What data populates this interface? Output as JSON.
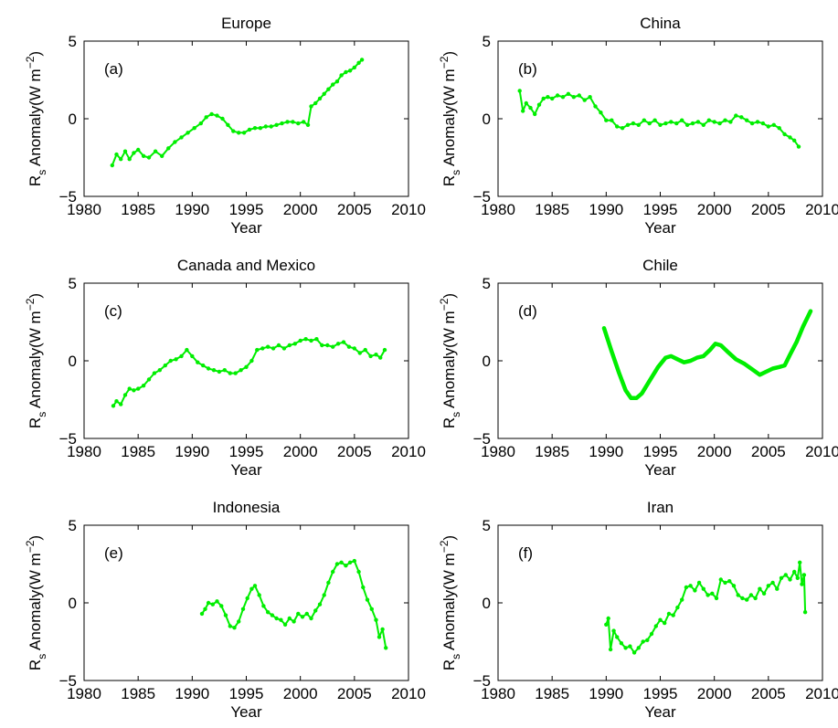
{
  "figure": {
    "line_color": "#00ee00",
    "axis_color": "#000000",
    "background": "#ffffff"
  },
  "chart_data": [
    {
      "type": "line",
      "title": "Europe",
      "panel_label": "(a)",
      "xlabel": "Year",
      "ylabel_main": "R",
      "ylabel_sub": "s",
      "ylabel_rest": " Anomaly(W m",
      "ylabel_sup": "−2",
      "ylabel_close": ")",
      "xlim": [
        1980,
        2010
      ],
      "ylim": [
        -5,
        5
      ],
      "xticks": [
        1980,
        1985,
        1990,
        1995,
        2000,
        2005,
        2010
      ],
      "yticks": [
        -5,
        0,
        5
      ],
      "xtick_labels": [
        "1980",
        "1985",
        "1990",
        "1995",
        "2000",
        "2005",
        "2010"
      ],
      "ytick_labels": [
        "−5",
        "0",
        "5"
      ],
      "markers": true,
      "series": [
        {
          "color": "#00ee00",
          "x": [
            1982.6,
            1983.0,
            1983.4,
            1983.8,
            1984.2,
            1984.6,
            1985.0,
            1985.5,
            1986.0,
            1986.6,
            1987.2,
            1987.8,
            1988.4,
            1989.0,
            1989.6,
            1990.2,
            1990.8,
            1991.3,
            1991.8,
            1992.3,
            1992.8,
            1993.3,
            1993.8,
            1994.3,
            1994.8,
            1995.3,
            1995.8,
            1996.3,
            1996.8,
            1997.3,
            1997.8,
            1998.3,
            1998.8,
            1999.3,
            1999.8,
            2000.3,
            2000.7,
            2001.0,
            2001.4,
            2001.8,
            2002.2,
            2002.6,
            2003.0,
            2003.4,
            2003.8,
            2004.2,
            2004.6,
            2005.0,
            2005.4,
            2005.7
          ],
          "y": [
            -3.0,
            -2.3,
            -2.6,
            -2.1,
            -2.6,
            -2.2,
            -2.0,
            -2.4,
            -2.5,
            -2.1,
            -2.4,
            -1.9,
            -1.5,
            -1.2,
            -0.9,
            -0.6,
            -0.3,
            0.1,
            0.3,
            0.2,
            0.0,
            -0.4,
            -0.8,
            -0.9,
            -0.9,
            -0.7,
            -0.6,
            -0.6,
            -0.5,
            -0.5,
            -0.4,
            -0.3,
            -0.2,
            -0.2,
            -0.3,
            -0.2,
            -0.4,
            0.8,
            1.0,
            1.3,
            1.6,
            1.9,
            2.2,
            2.4,
            2.8,
            3.0,
            3.1,
            3.3,
            3.6,
            3.8
          ]
        }
      ]
    },
    {
      "type": "line",
      "title": "China",
      "panel_label": "(b)",
      "xlabel": "Year",
      "ylabel_main": "R",
      "ylabel_sub": "s",
      "ylabel_rest": " Anomaly(W m",
      "ylabel_sup": "−2",
      "ylabel_close": ")",
      "xlim": [
        1980,
        2010
      ],
      "ylim": [
        -5,
        5
      ],
      "xticks": [
        1980,
        1985,
        1990,
        1995,
        2000,
        2005,
        2010
      ],
      "yticks": [
        -5,
        0,
        5
      ],
      "xtick_labels": [
        "1980",
        "1985",
        "1990",
        "1995",
        "2000",
        "2005",
        "2010"
      ],
      "ytick_labels": [
        "−5",
        "0",
        "5"
      ],
      "markers": true,
      "series": [
        {
          "color": "#00ee00",
          "x": [
            1982.0,
            1982.3,
            1982.6,
            1983.0,
            1983.4,
            1983.8,
            1984.2,
            1984.6,
            1985.0,
            1985.5,
            1986.0,
            1986.5,
            1987.0,
            1987.5,
            1988.0,
            1988.5,
            1989.0,
            1989.5,
            1990.0,
            1990.5,
            1991.0,
            1991.5,
            1992.0,
            1992.5,
            1993.0,
            1993.5,
            1994.0,
            1994.5,
            1995.0,
            1995.5,
            1996.0,
            1996.5,
            1997.0,
            1997.5,
            1998.0,
            1998.5,
            1999.0,
            1999.5,
            2000.0,
            2000.5,
            2001.0,
            2001.5,
            2002.0,
            2002.5,
            2003.0,
            2003.5,
            2004.0,
            2004.5,
            2005.0,
            2005.5,
            2006.0,
            2006.5,
            2007.0,
            2007.4,
            2007.8
          ],
          "y": [
            1.8,
            0.5,
            1.0,
            0.7,
            0.3,
            0.9,
            1.3,
            1.4,
            1.3,
            1.5,
            1.4,
            1.6,
            1.4,
            1.5,
            1.2,
            1.4,
            0.8,
            0.4,
            -0.1,
            -0.1,
            -0.5,
            -0.6,
            -0.4,
            -0.3,
            -0.4,
            -0.1,
            -0.3,
            -0.1,
            -0.4,
            -0.3,
            -0.2,
            -0.3,
            -0.1,
            -0.4,
            -0.3,
            -0.2,
            -0.4,
            -0.1,
            -0.2,
            -0.3,
            -0.1,
            -0.2,
            0.2,
            0.1,
            -0.1,
            -0.3,
            -0.2,
            -0.3,
            -0.5,
            -0.4,
            -0.6,
            -1.0,
            -1.2,
            -1.4,
            -1.8
          ]
        }
      ]
    },
    {
      "type": "line",
      "title": "Canada and Mexico",
      "panel_label": "(c)",
      "xlabel": "Year",
      "ylabel_main": "R",
      "ylabel_sub": "s",
      "ylabel_rest": " Anomaly(W m",
      "ylabel_sup": "−2",
      "ylabel_close": ")",
      "xlim": [
        1980,
        2010
      ],
      "ylim": [
        -5,
        5
      ],
      "xticks": [
        1980,
        1985,
        1990,
        1995,
        2000,
        2005,
        2010
      ],
      "yticks": [
        -5,
        0,
        5
      ],
      "xtick_labels": [
        "1980",
        "1985",
        "1990",
        "1995",
        "2000",
        "2005",
        "2010"
      ],
      "ytick_labels": [
        "−5",
        "0",
        "5"
      ],
      "markers": true,
      "series": [
        {
          "color": "#00ee00",
          "x": [
            1982.7,
            1983.0,
            1983.4,
            1983.8,
            1984.2,
            1984.6,
            1985.0,
            1985.5,
            1986.0,
            1986.5,
            1987.0,
            1987.5,
            1988.0,
            1988.5,
            1989.0,
            1989.5,
            1990.0,
            1990.5,
            1991.0,
            1991.5,
            1992.0,
            1992.5,
            1993.0,
            1993.5,
            1994.0,
            1994.5,
            1995.0,
            1995.5,
            1996.0,
            1996.5,
            1997.0,
            1997.5,
            1998.0,
            1998.5,
            1999.0,
            1999.5,
            2000.0,
            2000.5,
            2001.0,
            2001.5,
            2002.0,
            2002.5,
            2003.0,
            2003.5,
            2004.0,
            2004.5,
            2005.0,
            2005.5,
            2006.0,
            2006.5,
            2007.0,
            2007.4,
            2007.8
          ],
          "y": [
            -2.9,
            -2.6,
            -2.8,
            -2.2,
            -1.8,
            -1.9,
            -1.8,
            -1.6,
            -1.2,
            -0.8,
            -0.6,
            -0.3,
            0.0,
            0.1,
            0.3,
            0.7,
            0.3,
            -0.1,
            -0.3,
            -0.5,
            -0.6,
            -0.7,
            -0.6,
            -0.8,
            -0.8,
            -0.6,
            -0.4,
            0.0,
            0.7,
            0.8,
            0.9,
            0.8,
            1.0,
            0.8,
            1.0,
            1.1,
            1.3,
            1.4,
            1.3,
            1.4,
            1.0,
            1.0,
            0.9,
            1.1,
            1.2,
            0.9,
            0.8,
            0.5,
            0.7,
            0.3,
            0.4,
            0.2,
            0.7
          ]
        }
      ]
    },
    {
      "type": "line",
      "title": "Chile",
      "panel_label": "(d)",
      "xlabel": "Year",
      "ylabel_main": "R",
      "ylabel_sub": "s",
      "ylabel_rest": " Anomaly(W m",
      "ylabel_sup": "−2",
      "ylabel_close": ")",
      "xlim": [
        1980,
        2010
      ],
      "ylim": [
        -5,
        5
      ],
      "xticks": [
        1980,
        1985,
        1990,
        1995,
        2000,
        2005,
        2010
      ],
      "yticks": [
        -5,
        0,
        5
      ],
      "xtick_labels": [
        "1980",
        "1985",
        "1990",
        "1995",
        "2000",
        "2005",
        "2010"
      ],
      "ytick_labels": [
        "−5",
        "0",
        "5"
      ],
      "markers": false,
      "series": [
        {
          "color": "#00ee00",
          "x": [
            1989.8,
            1990.5,
            1991.2,
            1991.8,
            1992.3,
            1992.8,
            1993.3,
            1994.0,
            1994.8,
            1995.5,
            1996.0,
            1996.6,
            1997.2,
            1997.8,
            1998.4,
            1999.0,
            1999.6,
            2000.1,
            2000.6,
            2001.2,
            2002.0,
            2002.8,
            2003.6,
            2004.2,
            2004.8,
            2005.4,
            2006.0,
            2006.5,
            2007.0,
            2007.6,
            2008.2,
            2008.9
          ],
          "y": [
            2.1,
            0.6,
            -0.8,
            -1.9,
            -2.4,
            -2.4,
            -2.1,
            -1.3,
            -0.4,
            0.2,
            0.3,
            0.1,
            -0.1,
            0.0,
            0.2,
            0.3,
            0.7,
            1.1,
            1.0,
            0.6,
            0.1,
            -0.2,
            -0.6,
            -0.9,
            -0.7,
            -0.5,
            -0.4,
            -0.3,
            0.4,
            1.2,
            2.2,
            3.2
          ]
        }
      ]
    },
    {
      "type": "line",
      "title": "Indonesia",
      "panel_label": "(e)",
      "xlabel": "Year",
      "ylabel_main": "R",
      "ylabel_sub": "s",
      "ylabel_rest": " Anomaly(W m",
      "ylabel_sup": "−2",
      "ylabel_close": ")",
      "xlim": [
        1980,
        2010
      ],
      "ylim": [
        -5,
        5
      ],
      "xticks": [
        1980,
        1985,
        1990,
        1995,
        2000,
        2005,
        2010
      ],
      "yticks": [
        -5,
        0,
        5
      ],
      "xtick_labels": [
        "1980",
        "1985",
        "1990",
        "1995",
        "2000",
        "2005",
        "2010"
      ],
      "ytick_labels": [
        "−5",
        "0",
        "5"
      ],
      "markers": true,
      "series": [
        {
          "color": "#00ee00",
          "x": [
            1990.9,
            1991.2,
            1991.5,
            1991.9,
            1992.3,
            1992.7,
            1993.1,
            1993.5,
            1993.9,
            1994.3,
            1994.7,
            1995.1,
            1995.5,
            1995.8,
            1996.2,
            1996.6,
            1997.0,
            1997.4,
            1997.8,
            1998.2,
            1998.6,
            1999.0,
            1999.4,
            1999.8,
            2000.2,
            2000.6,
            2001.0,
            2001.4,
            2001.8,
            2002.2,
            2002.6,
            2003.0,
            2003.4,
            2003.8,
            2004.2,
            2004.6,
            2005.0,
            2005.4,
            2005.8,
            2006.2,
            2006.6,
            2007.0,
            2007.3,
            2007.6,
            2007.9
          ],
          "y": [
            -0.7,
            -0.4,
            0.0,
            -0.1,
            0.1,
            -0.2,
            -0.8,
            -1.5,
            -1.6,
            -1.2,
            -0.4,
            0.3,
            0.9,
            1.1,
            0.5,
            -0.2,
            -0.6,
            -0.8,
            -1.0,
            -1.1,
            -1.4,
            -1.0,
            -1.2,
            -0.7,
            -0.9,
            -0.7,
            -1.0,
            -0.5,
            -0.1,
            0.5,
            1.3,
            2.0,
            2.5,
            2.6,
            2.4,
            2.6,
            2.7,
            2.0,
            1.0,
            0.2,
            -0.4,
            -1.1,
            -2.2,
            -1.7,
            -2.9
          ]
        }
      ]
    },
    {
      "type": "line",
      "title": "Iran",
      "panel_label": "(f)",
      "xlabel": "Year",
      "ylabel_main": "R",
      "ylabel_sub": "s",
      "ylabel_rest": " Anomaly(W m",
      "ylabel_sup": "−2",
      "ylabel_close": ")",
      "xlim": [
        1980,
        2010
      ],
      "ylim": [
        -5,
        5
      ],
      "xticks": [
        1980,
        1985,
        1990,
        1995,
        2000,
        2005,
        2010
      ],
      "yticks": [
        -5,
        0,
        5
      ],
      "xtick_labels": [
        "1980",
        "1985",
        "1990",
        "1995",
        "2000",
        "2005",
        "2010"
      ],
      "ytick_labels": [
        "−5",
        "0",
        "5"
      ],
      "markers": true,
      "series": [
        {
          "color": "#00ee00",
          "x": [
            1990.0,
            1990.2,
            1990.4,
            1990.7,
            1991.0,
            1991.4,
            1991.8,
            1992.2,
            1992.6,
            1993.0,
            1993.4,
            1993.8,
            1994.2,
            1994.6,
            1995.0,
            1995.4,
            1995.8,
            1996.2,
            1996.6,
            1997.0,
            1997.4,
            1997.8,
            1998.2,
            1998.6,
            1999.0,
            1999.4,
            1999.8,
            2000.2,
            2000.6,
            2001.0,
            2001.4,
            2001.8,
            2002.2,
            2002.6,
            2003.0,
            2003.4,
            2003.8,
            2004.2,
            2004.6,
            2005.0,
            2005.4,
            2005.8,
            2006.2,
            2006.6,
            2007.0,
            2007.4,
            2007.7,
            2007.9,
            2008.1,
            2008.3,
            2008.4
          ],
          "y": [
            -1.4,
            -1.0,
            -3.0,
            -1.8,
            -2.2,
            -2.6,
            -2.9,
            -2.8,
            -3.2,
            -2.9,
            -2.5,
            -2.4,
            -2.0,
            -1.5,
            -1.1,
            -1.3,
            -0.7,
            -0.8,
            -0.3,
            0.2,
            1.0,
            1.1,
            0.8,
            1.3,
            0.9,
            0.5,
            0.6,
            0.3,
            1.5,
            1.3,
            1.4,
            1.1,
            0.5,
            0.3,
            0.2,
            0.5,
            0.3,
            0.9,
            0.6,
            1.1,
            1.3,
            0.9,
            1.6,
            1.8,
            1.5,
            2.0,
            1.6,
            2.6,
            1.2,
            1.8,
            -0.6
          ]
        }
      ]
    }
  ]
}
